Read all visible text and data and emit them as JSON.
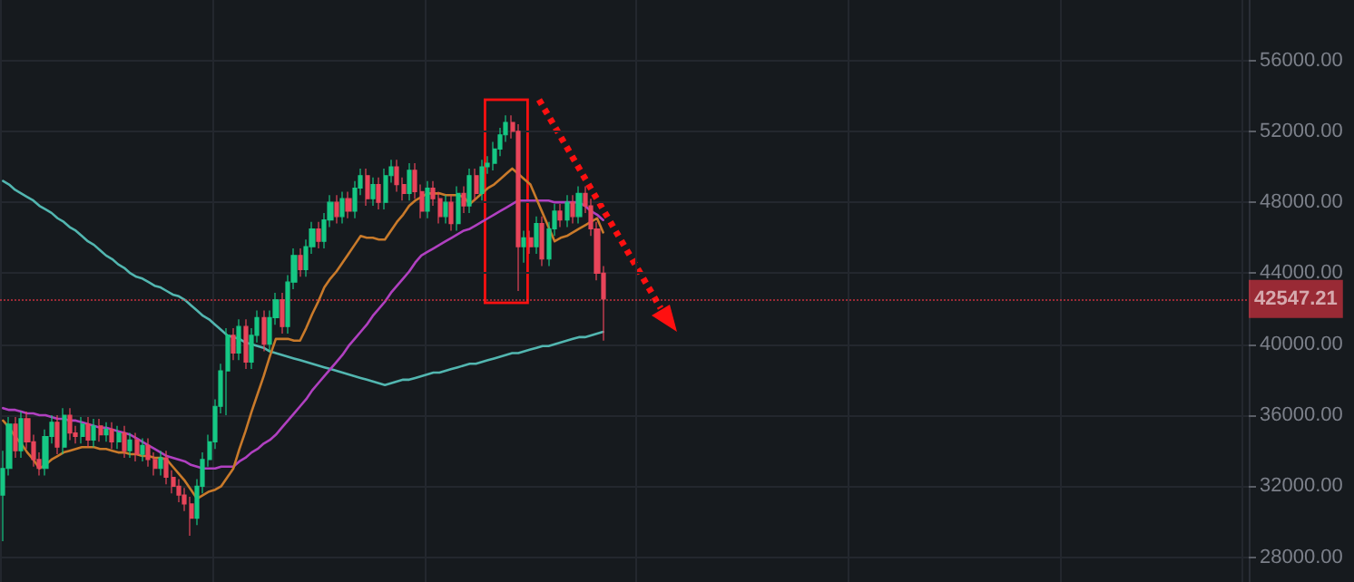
{
  "chart_data": {
    "type": "candlestick",
    "categories": [
      null,
      null,
      null,
      null,
      null,
      null,
      null,
      null,
      null,
      null,
      null,
      null,
      null,
      null,
      null,
      null,
      null,
      null,
      null,
      null,
      null,
      null,
      null,
      null,
      null,
      null,
      null,
      null,
      null,
      null,
      null,
      null,
      null,
      null,
      null,
      null,
      null,
      null,
      null,
      null,
      null,
      null,
      null,
      null,
      null,
      null,
      null,
      null,
      null,
      null,
      null,
      null,
      null,
      null,
      null,
      null,
      null,
      null,
      null,
      null,
      null,
      null,
      null,
      null,
      null,
      null,
      null,
      null,
      null,
      null,
      null,
      null,
      null,
      null,
      null,
      null,
      null,
      null,
      null,
      null,
      null,
      null,
      null,
      null,
      null,
      null,
      null,
      null,
      null,
      null,
      null,
      null,
      null,
      null,
      null,
      null,
      null,
      null,
      null,
      null,
      null,
      null,
      null,
      null,
      null,
      null,
      null,
      null,
      null,
      null,
      null,
      null,
      null,
      null,
      null,
      null,
      null,
      null,
      null,
      null,
      null,
      null,
      null,
      null,
      null,
      null,
      null,
      null,
      null,
      null,
      null,
      null,
      null,
      null,
      null,
      null,
      null,
      null,
      null,
      null,
      null,
      null,
      null,
      null,
      null,
      null,
      null,
      null,
      null,
      null,
      null,
      null,
      null,
      null,
      null,
      null,
      null,
      null,
      null,
      null,
      null,
      null,
      null,
      null,
      null,
      null,
      null,
      null,
      null,
      null,
      null,
      null,
      null,
      null,
      null,
      null,
      null,
      null,
      null,
      null,
      null,
      null,
      null,
      null,
      null,
      null,
      null,
      null,
      null,
      null,
      null,
      null,
      null,
      null,
      null,
      null,
      null,
      null,
      null,
      null,
      null,
      null,
      null,
      null,
      null,
      null
    ],
    "ohlc": [
      [
        31500,
        34000,
        28900,
        33000
      ],
      [
        33000,
        35900,
        32600,
        35500
      ],
      [
        35500,
        35900,
        33600,
        34000
      ],
      [
        34000,
        36200,
        33600,
        35800
      ],
      [
        35800,
        36200,
        34100,
        34500
      ],
      [
        34500,
        34900,
        33100,
        33500
      ],
      [
        33500,
        33900,
        32600,
        33000
      ],
      [
        33000,
        35200,
        32600,
        34800
      ],
      [
        34800,
        36000,
        34400,
        35600
      ],
      [
        35600,
        36000,
        33800,
        34200
      ],
      [
        34200,
        36400,
        33800,
        36000
      ],
      [
        36000,
        36400,
        34600,
        35000
      ],
      [
        35000,
        35400,
        34400,
        34800
      ],
      [
        34800,
        35900,
        34400,
        35500
      ],
      [
        35500,
        35900,
        34200,
        34600
      ],
      [
        34600,
        35800,
        34200,
        35400
      ],
      [
        35400,
        35800,
        34500,
        34900
      ],
      [
        34900,
        35600,
        34500,
        35200
      ],
      [
        35200,
        35600,
        34100,
        34500
      ],
      [
        34500,
        35400,
        34100,
        35000
      ],
      [
        35000,
        35400,
        33600,
        34000
      ],
      [
        34000,
        35000,
        33600,
        34600
      ],
      [
        34600,
        35000,
        33400,
        33800
      ],
      [
        33800,
        34700,
        33400,
        34300
      ],
      [
        34300,
        34700,
        33100,
        33500
      ],
      [
        33500,
        33900,
        32600,
        33000
      ],
      [
        33000,
        34000,
        32600,
        33600
      ],
      [
        33600,
        34000,
        32100,
        32500
      ],
      [
        32500,
        32900,
        31600,
        32000
      ],
      [
        32000,
        32400,
        31100,
        31500
      ],
      [
        31500,
        31900,
        30600,
        31000
      ],
      [
        31000,
        31400,
        29200,
        30200
      ],
      [
        30200,
        32400,
        29800,
        32000
      ],
      [
        32000,
        33900,
        31600,
        33500
      ],
      [
        33500,
        34900,
        33100,
        34500
      ],
      [
        34500,
        36900,
        34100,
        36500
      ],
      [
        36500,
        38900,
        36100,
        38500
      ],
      [
        38500,
        40900,
        36000,
        40500
      ],
      [
        40500,
        40900,
        39100,
        39500
      ],
      [
        39500,
        41400,
        39100,
        41000
      ],
      [
        41000,
        41400,
        38600,
        39000
      ],
      [
        39000,
        40900,
        38600,
        40500
      ],
      [
        40500,
        41900,
        40100,
        41500
      ],
      [
        41500,
        41900,
        39600,
        40000
      ],
      [
        40000,
        41900,
        39600,
        41500
      ],
      [
        41500,
        42900,
        41100,
        42500
      ],
      [
        42500,
        42900,
        40600,
        41000
      ],
      [
        41000,
        43900,
        40600,
        43500
      ],
      [
        43500,
        45400,
        43100,
        45000
      ],
      [
        45000,
        45400,
        43800,
        44200
      ],
      [
        44200,
        45900,
        43800,
        45500
      ],
      [
        45500,
        46900,
        45100,
        46500
      ],
      [
        46500,
        46900,
        45400,
        45800
      ],
      [
        45800,
        47400,
        45400,
        47000
      ],
      [
        47000,
        48400,
        46600,
        48000
      ],
      [
        48000,
        48400,
        46800,
        47200
      ],
      [
        47200,
        48600,
        46800,
        48200
      ],
      [
        48200,
        48600,
        47100,
        47500
      ],
      [
        47500,
        49200,
        47100,
        48800
      ],
      [
        48800,
        49900,
        48400,
        49500
      ],
      [
        49500,
        49900,
        47800,
        48200
      ],
      [
        48200,
        49400,
        47800,
        49000
      ],
      [
        49000,
        49400,
        47600,
        48000
      ],
      [
        48000,
        49900,
        47600,
        49500
      ],
      [
        49500,
        50400,
        49100,
        50000
      ],
      [
        50000,
        50400,
        48600,
        49000
      ],
      [
        49000,
        49400,
        48100,
        48500
      ],
      [
        48500,
        50200,
        48100,
        49800
      ],
      [
        49800,
        50200,
        48200,
        48600
      ],
      [
        48600,
        49000,
        47100,
        47500
      ],
      [
        47500,
        49200,
        47100,
        48800
      ],
      [
        48800,
        49200,
        47800,
        48200
      ],
      [
        48200,
        48600,
        46800,
        47200
      ],
      [
        47200,
        48400,
        46800,
        48000
      ],
      [
        48000,
        48400,
        46400,
        46800
      ],
      [
        46800,
        48900,
        46400,
        48500
      ],
      [
        48500,
        48900,
        47400,
        47800
      ],
      [
        47800,
        49900,
        47400,
        49500
      ],
      [
        49500,
        49900,
        48100,
        48500
      ],
      [
        48500,
        50400,
        48100,
        50000
      ],
      [
        50000,
        50600,
        49600,
        50200
      ],
      [
        50200,
        51400,
        49800,
        51000
      ],
      [
        51000,
        52200,
        50600,
        51800
      ],
      [
        51800,
        52900,
        51400,
        52500
      ],
      [
        52500,
        52900,
        51600,
        52000
      ],
      [
        52000,
        52400,
        43000,
        45500
      ],
      [
        45500,
        46400,
        44600,
        46000
      ],
      [
        46000,
        46400,
        45100,
        45500
      ],
      [
        45500,
        47200,
        45100,
        46800
      ],
      [
        46800,
        47200,
        44400,
        44800
      ],
      [
        44800,
        46900,
        44400,
        46500
      ],
      [
        46500,
        47900,
        46100,
        47500
      ],
      [
        47500,
        47900,
        46600,
        47000
      ],
      [
        47000,
        48400,
        46600,
        48000
      ],
      [
        48000,
        48400,
        46800,
        47200
      ],
      [
        47200,
        48900,
        46800,
        48500
      ],
      [
        48500,
        48900,
        47400,
        47800
      ],
      [
        47800,
        48200,
        46100,
        46500
      ],
      [
        46500,
        46900,
        43600,
        44000
      ],
      [
        44000,
        44400,
        40200,
        42547.21
      ],
      null,
      null,
      null,
      null,
      null,
      null,
      null,
      null,
      null,
      null,
      null,
      null,
      null,
      null,
      null,
      null,
      null,
      null,
      null,
      null,
      null,
      null,
      null,
      null,
      null,
      null,
      null,
      null,
      null,
      null,
      null,
      null,
      null,
      null,
      null,
      null,
      null,
      null,
      null,
      null,
      null,
      null,
      null,
      null,
      null,
      null,
      null,
      null,
      null,
      null,
      null,
      null,
      null,
      null,
      null,
      null,
      null,
      null,
      null,
      null,
      null,
      null,
      null,
      null,
      null,
      null,
      null,
      null,
      null,
      null,
      null,
      null,
      null,
      null,
      null,
      null,
      null,
      null,
      null,
      null,
      null,
      null,
      null,
      null,
      null,
      null,
      null,
      null,
      null,
      null,
      null,
      null,
      null,
      null,
      null,
      null,
      null,
      null,
      null,
      null,
      null,
      null,
      null,
      null,
      null,
      null
    ],
    "series": [
      {
        "type": "line",
        "color": "#52b6b0",
        "values": [
          49200,
          49000,
          48700,
          48500,
          48300,
          48100,
          47800,
          47600,
          47400,
          47100,
          46900,
          46600,
          46400,
          46100,
          45800,
          45600,
          45300,
          45000,
          44800,
          44500,
          44300,
          44000,
          43800,
          43700,
          43500,
          43300,
          43200,
          43000,
          42800,
          42700,
          42500,
          42200,
          41900,
          41600,
          41400,
          41100,
          40800,
          40500,
          40400,
          40300,
          40100,
          40000,
          39900,
          39800,
          39600,
          39500,
          39400,
          39300,
          39200,
          39100,
          39000,
          38900,
          38800,
          38700,
          38600,
          38500,
          38400,
          38300,
          38200,
          38100,
          38000,
          37900,
          37800,
          37700,
          37800,
          37900,
          38000,
          38000,
          38100,
          38200,
          38300,
          38400,
          38400,
          38500,
          38600,
          38700,
          38800,
          38900,
          38900,
          39000,
          39100,
          39200,
          39300,
          39400,
          39500,
          39500,
          39600,
          39700,
          39800,
          39900,
          39900,
          40000,
          40100,
          40200,
          40300,
          40400,
          40400,
          40500,
          40600,
          40700,
          null,
          null,
          null,
          null,
          null,
          null,
          null,
          null,
          null,
          null,
          null,
          null,
          null,
          null,
          null,
          null,
          null,
          null,
          null,
          null,
          null,
          null,
          null,
          null,
          null,
          null,
          null,
          null,
          null,
          null,
          null,
          null,
          null,
          null,
          null,
          null,
          null,
          null,
          null,
          null,
          null,
          null,
          null,
          null,
          null,
          null,
          null,
          null,
          null,
          null,
          null,
          null,
          null,
          null,
          null,
          null,
          null,
          null,
          null,
          null,
          null,
          null,
          null,
          null,
          null,
          null,
          null,
          null,
          null,
          null,
          null,
          null,
          null,
          null,
          null,
          null,
          null,
          null,
          null,
          null,
          null,
          null,
          null,
          null,
          null,
          null,
          null,
          null,
          null,
          null,
          null,
          null,
          null,
          null,
          null,
          null,
          null,
          null,
          null,
          null,
          null,
          null,
          null,
          null,
          null,
          null
        ]
      },
      {
        "type": "line",
        "color": "#b040c0",
        "values": [
          36400,
          36300,
          36300,
          36200,
          36100,
          36100,
          36000,
          36000,
          35900,
          35800,
          35800,
          35700,
          35700,
          35600,
          35500,
          35400,
          35300,
          35300,
          35200,
          35100,
          35000,
          34900,
          34700,
          34500,
          34300,
          34100,
          33900,
          33700,
          33600,
          33500,
          33400,
          33200,
          33100,
          33000,
          33000,
          33000,
          33100,
          33100,
          33100,
          33400,
          33600,
          33900,
          34100,
          34400,
          34600,
          34900,
          35300,
          35700,
          36100,
          36500,
          36900,
          37400,
          37800,
          38200,
          38600,
          39000,
          39400,
          39900,
          40300,
          40700,
          41100,
          41600,
          42000,
          42400,
          42900,
          43300,
          43700,
          44100,
          44600,
          45000,
          45200,
          45400,
          45600,
          45800,
          46000,
          46200,
          46400,
          46500,
          46700,
          46900,
          47100,
          47300,
          47500,
          47700,
          47900,
          48100,
          48100,
          48100,
          48100,
          48100,
          48100,
          48000,
          48000,
          48000,
          48000,
          48000,
          47800,
          47500,
          47300,
          47000,
          null,
          null,
          null,
          null,
          null,
          null,
          null,
          null,
          null,
          null,
          null,
          null,
          null,
          null,
          null,
          null,
          null,
          null,
          null,
          null,
          null,
          null,
          null,
          null,
          null,
          null,
          null,
          null,
          null,
          null,
          null,
          null,
          null,
          null,
          null,
          null,
          null,
          null,
          null,
          null,
          null,
          null,
          null,
          null,
          null,
          null,
          null,
          null,
          null,
          null,
          null,
          null,
          null,
          null,
          null,
          null,
          null,
          null,
          null,
          null,
          null,
          null,
          null,
          null,
          null,
          null,
          null,
          null,
          null,
          null,
          null,
          null,
          null,
          null,
          null,
          null,
          null,
          null,
          null,
          null,
          null,
          null,
          null,
          null,
          null,
          null,
          null,
          null,
          null,
          null,
          null,
          null,
          null,
          null,
          null,
          null,
          null,
          null,
          null,
          null,
          null,
          null,
          null,
          null,
          null,
          null
        ]
      },
      {
        "type": "line",
        "color": "#c97a2a",
        "values": [
          35700,
          35300,
          34800,
          34400,
          33900,
          33500,
          33000,
          33200,
          33500,
          33700,
          33900,
          34000,
          34100,
          34200,
          34200,
          34200,
          34100,
          34100,
          34000,
          33900,
          33900,
          33800,
          33800,
          33700,
          33700,
          33600,
          33600,
          33500,
          33100,
          32700,
          32300,
          31800,
          31300,
          31500,
          31700,
          31800,
          32000,
          32500,
          33000,
          34100,
          35100,
          36200,
          37200,
          38200,
          39300,
          40300,
          40300,
          40300,
          40200,
          40200,
          40900,
          41700,
          42400,
          43200,
          43700,
          44100,
          44600,
          45100,
          45600,
          46100,
          46000,
          46000,
          45900,
          45900,
          46400,
          46900,
          47300,
          47800,
          48100,
          48300,
          48500,
          48500,
          48500,
          48400,
          48400,
          48400,
          48300,
          47900,
          48200,
          48500,
          48800,
          49000,
          49300,
          49600,
          49900,
          49600,
          49300,
          49000,
          48200,
          47400,
          46600,
          45800,
          46000,
          46100,
          46300,
          46500,
          46700,
          46900,
          47100,
          46300,
          null,
          null,
          null,
          null,
          null,
          null,
          null,
          null,
          null,
          null,
          null,
          null,
          null,
          null,
          null,
          null,
          null,
          null,
          null,
          null,
          null,
          null,
          null,
          null,
          null,
          null,
          null,
          null,
          null,
          null,
          null,
          null,
          null,
          null,
          null,
          null,
          null,
          null,
          null,
          null,
          null,
          null,
          null,
          null,
          null,
          null,
          null,
          null,
          null,
          null,
          null,
          null,
          null,
          null,
          null,
          null,
          null,
          null,
          null,
          null,
          null,
          null,
          null,
          null,
          null,
          null,
          null,
          null,
          null,
          null,
          null,
          null,
          null,
          null,
          null,
          null,
          null,
          null,
          null,
          null,
          null,
          null,
          null,
          null,
          null,
          null,
          null,
          null,
          null,
          null,
          null,
          null,
          null,
          null,
          null,
          null,
          null,
          null,
          null,
          null,
          null,
          null,
          null,
          null,
          null,
          null
        ]
      }
    ],
    "ylim": [
      26600,
      59400
    ],
    "yticks": [
      {
        "value": 28000,
        "label": "28000.00"
      },
      {
        "value": 32000,
        "label": "32000.00"
      },
      {
        "value": 36000,
        "label": "36000.00"
      },
      {
        "value": 40000,
        "label": "40000.00"
      },
      {
        "value": 44000,
        "label": "44000.00"
      },
      {
        "value": 48000,
        "label": "48000.00"
      },
      {
        "value": 52000,
        "label": "52000.00"
      },
      {
        "value": 56000,
        "label": "56000.00"
      }
    ],
    "ref_lines": [
      {
        "axis": "y",
        "value": 42547.21,
        "label": "42547.21",
        "color": "#f23645",
        "line_style": "dotted"
      }
    ],
    "grid": true,
    "line_style": "solid",
    "tick_labels": "y"
  }
}
